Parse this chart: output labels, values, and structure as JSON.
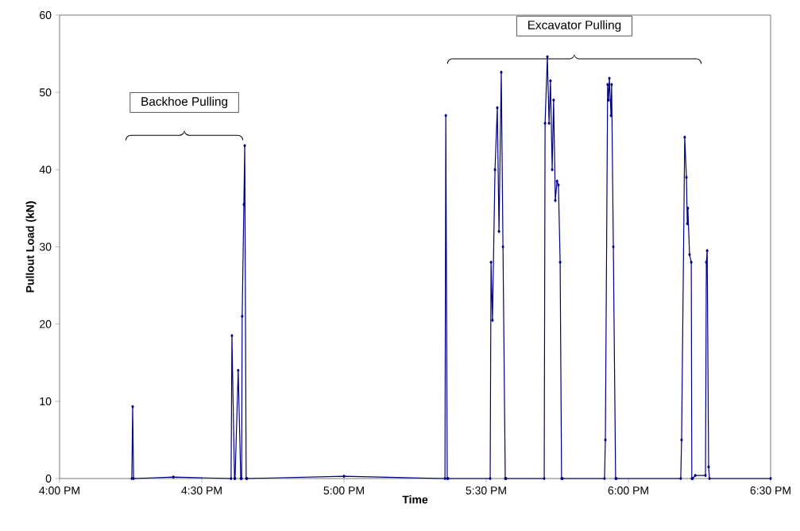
{
  "chart_data": {
    "type": "line",
    "xlabel": "Time",
    "ylabel": "Pullout Load (kN)",
    "xlim": [
      16,
      18.5
    ],
    "ylim": [
      0,
      60
    ],
    "xticks": [
      {
        "value": 16,
        "label": "4:00 PM"
      },
      {
        "value": 16.5,
        "label": "4:30 PM"
      },
      {
        "value": 17,
        "label": "5:00 PM"
      },
      {
        "value": 17.5,
        "label": "5:30 PM"
      },
      {
        "value": 18,
        "label": "6:00 PM"
      },
      {
        "value": 18.5,
        "label": "6:30 PM"
      }
    ],
    "yticks": [
      0,
      10,
      20,
      30,
      40,
      50,
      60
    ],
    "grid": false,
    "marker": "diamond",
    "line_style": "solid",
    "annotations": [
      "Backhoe Pulling",
      "Excavator Pulling"
    ],
    "series": [
      {
        "color": "#000080",
        "x": [
          16.254,
          16.257,
          16.26,
          16.4,
          16.603,
          16.606,
          16.615,
          16.617,
          16.628,
          16.637,
          16.64,
          16.642,
          16.648,
          16.651,
          16.656,
          16.659,
          17.0,
          17.355,
          17.358,
          17.363,
          17.366,
          17.514,
          17.517,
          17.522,
          17.531,
          17.539,
          17.545,
          17.553,
          17.559,
          17.567,
          17.57,
          17.704,
          17.707,
          17.715,
          17.721,
          17.726,
          17.732,
          17.737,
          17.743,
          17.749,
          17.754,
          17.76,
          17.765,
          17.768,
          17.916,
          17.919,
          17.927,
          17.93,
          17.933,
          17.939,
          17.941,
          17.947,
          17.955,
          17.958,
          18.184,
          18.187,
          18.198,
          18.204,
          18.207,
          18.209,
          18.215,
          18.221,
          18.223,
          18.226,
          18.235,
          18.271,
          18.274,
          18.277,
          18.282,
          18.285,
          18.5
        ],
        "values": [
          0,
          9.3,
          0,
          0.2,
          0,
          18.5,
          0,
          0,
          14,
          0,
          0,
          21,
          35.5,
          43.1,
          0,
          0,
          0.3,
          0,
          47,
          0,
          0,
          0,
          28,
          20.5,
          40,
          48,
          32,
          52.6,
          30,
          0,
          0,
          0,
          46,
          54.6,
          46,
          51.5,
          40,
          49,
          36,
          38.5,
          38,
          28,
          0,
          0,
          0,
          5,
          51,
          49,
          51.8,
          47,
          51,
          30,
          0,
          0,
          0,
          5,
          44.2,
          39,
          33,
          35,
          29,
          28,
          0,
          0,
          0.4,
          0.4,
          28,
          29.5,
          1.5,
          0,
          0
        ]
      }
    ]
  }
}
